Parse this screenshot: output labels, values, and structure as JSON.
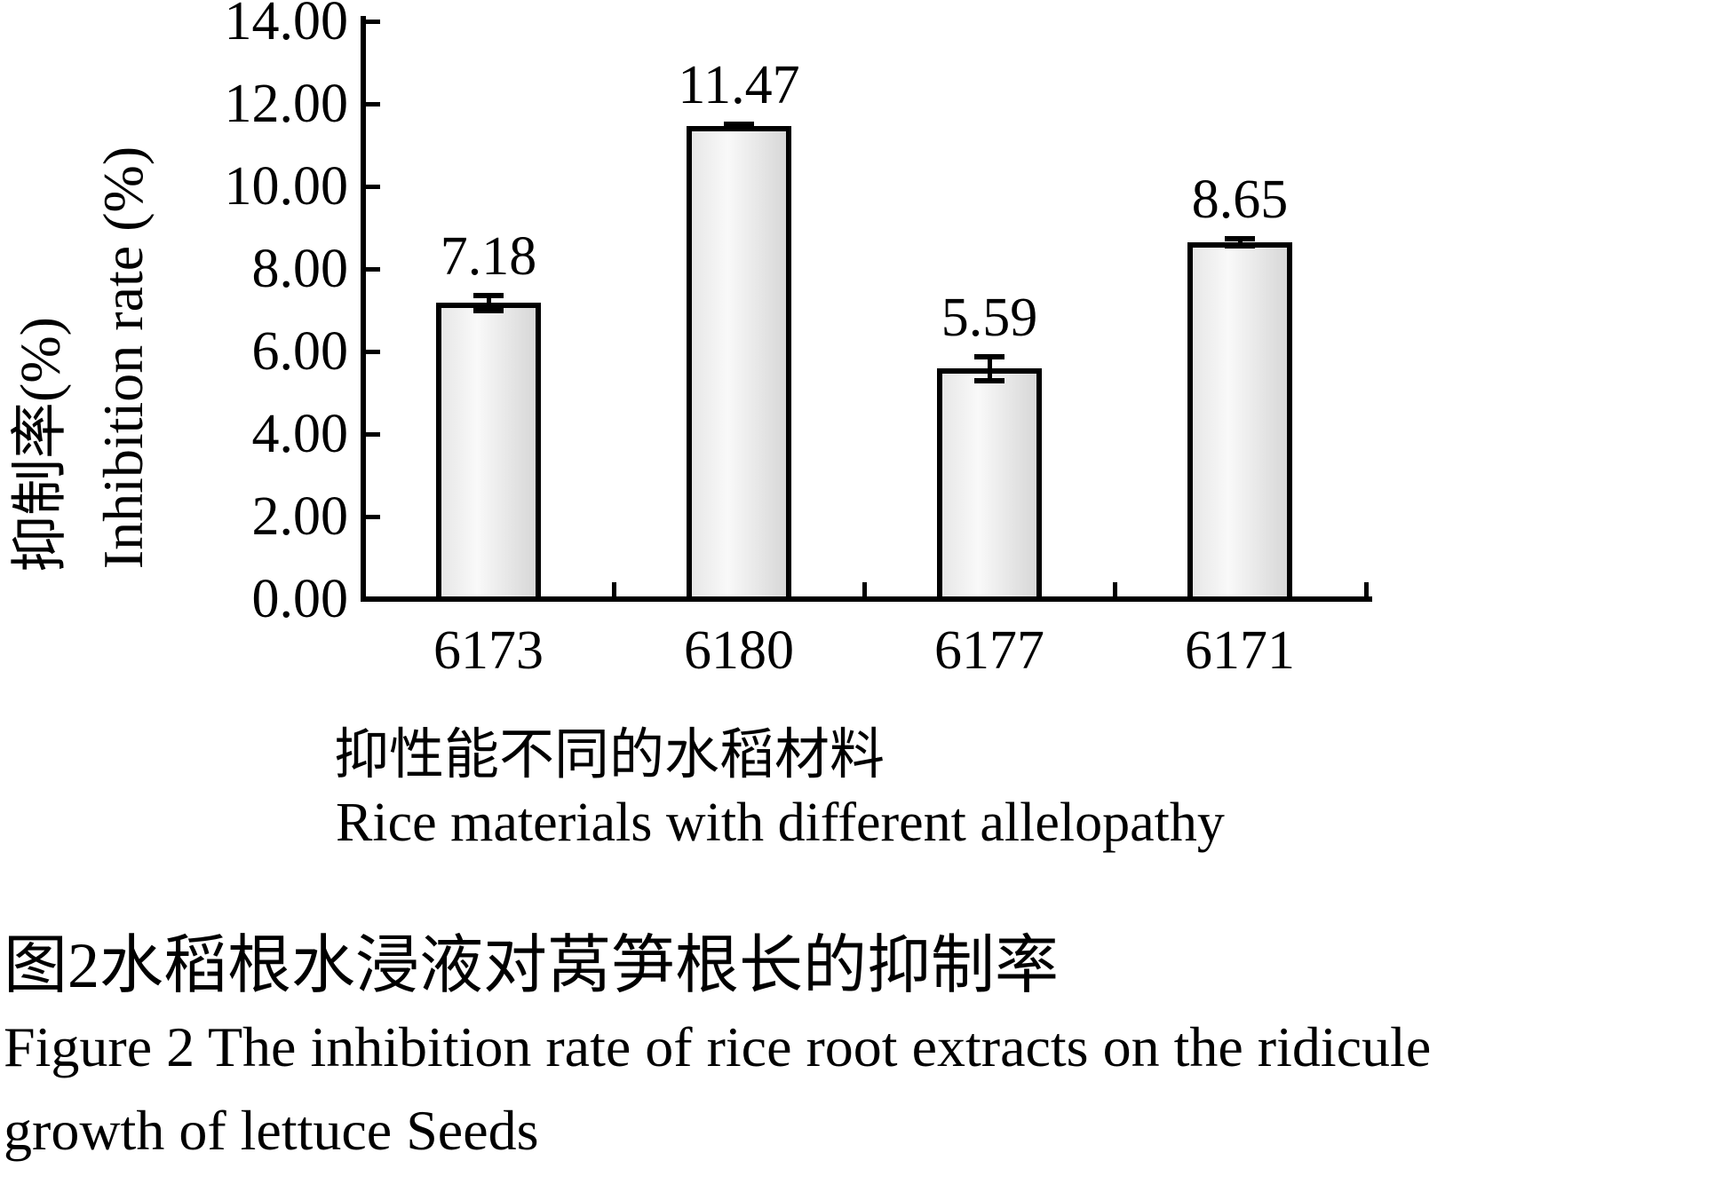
{
  "chart_data": {
    "type": "bar",
    "categories": [
      "6173",
      "6180",
      "6177",
      "6171"
    ],
    "values": [
      7.18,
      11.47,
      5.59,
      8.65
    ],
    "value_labels": [
      "7.18",
      "11.47",
      "5.59",
      "8.65"
    ],
    "errors": [
      0.2,
      0.06,
      0.3,
      0.1
    ],
    "y_ticks": [
      "14.00",
      "12.00",
      "10.00",
      "8.00",
      "6.00",
      "4.00",
      "2.00",
      "0.00"
    ],
    "ylim": [
      0,
      14
    ],
    "ylabel_zh": "抑制率(%)",
    "ylabel_en": "Inhibition rate (%)",
    "xlabel_zh": "抑性能不同的水稻材料",
    "xlabel_en": "Rice materials with different allelopathy",
    "grid": "off",
    "legend": "none",
    "axis_color": "#000000",
    "bar_fill_light": "#f9f9f9",
    "bar_fill_dark": "#d7d7d7"
  },
  "caption": {
    "line1_zh": "图2水稻根水浸液对莴笋根长的抑制率",
    "line2_en": "Figure 2 The inhibition rate of rice root extracts on the ridicule",
    "line3_en": "growth of lettuce Seeds"
  }
}
